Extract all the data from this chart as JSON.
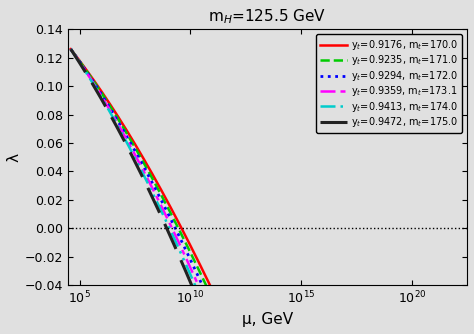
{
  "title": "m$_H$=125.5 GeV",
  "xlabel": "μ, GeV",
  "ylabel": "λ",
  "xlim": [
    30000.0,
    3e+22
  ],
  "ylim": [
    -0.04,
    0.14
  ],
  "yticks": [
    -0.04,
    -0.02,
    0.0,
    0.02,
    0.04,
    0.06,
    0.08,
    0.1,
    0.12,
    0.14
  ],
  "xticks": [
    100000.0,
    10000000000.0,
    1000000000000000.0,
    1e+20
  ],
  "series": [
    {
      "yt": 0.9176,
      "mt": 170.0,
      "color": "#ff0000",
      "linestyle": "solid",
      "lw": 1.8,
      "label": "y$_t$=0.9176, m$_t$=170.0"
    },
    {
      "yt": 0.9235,
      "mt": 171.0,
      "color": "#00cc00",
      "linestyle": "dashed",
      "lw": 1.8,
      "label": "y$_t$=0.9235, m$_t$=171.0"
    },
    {
      "yt": 0.9294,
      "mt": 172.0,
      "color": "#0000ff",
      "linestyle": "dotted",
      "lw": 2.0,
      "label": "y$_t$=0.9294, m$_t$=172.0"
    },
    {
      "yt": 0.9359,
      "mt": 173.1,
      "color": "#ff00ff",
      "linestyle": "dashdot",
      "lw": 1.8,
      "label": "y$_t$=0.9359, m$_t$=173.1"
    },
    {
      "yt": 0.9413,
      "mt": 174.0,
      "color": "#00cccc",
      "linestyle": "dashdot2",
      "lw": 1.8,
      "label": "y$_t$=0.9413, m$_t$=174.0"
    },
    {
      "yt": 0.9472,
      "mt": 175.0,
      "color": "#222222",
      "linestyle": "dashed2",
      "lw": 2.2,
      "label": "y$_t$=0.9472, m$_t$=175.0"
    }
  ],
  "lambda0": 0.12604,
  "background_color": "#e0e0e0"
}
